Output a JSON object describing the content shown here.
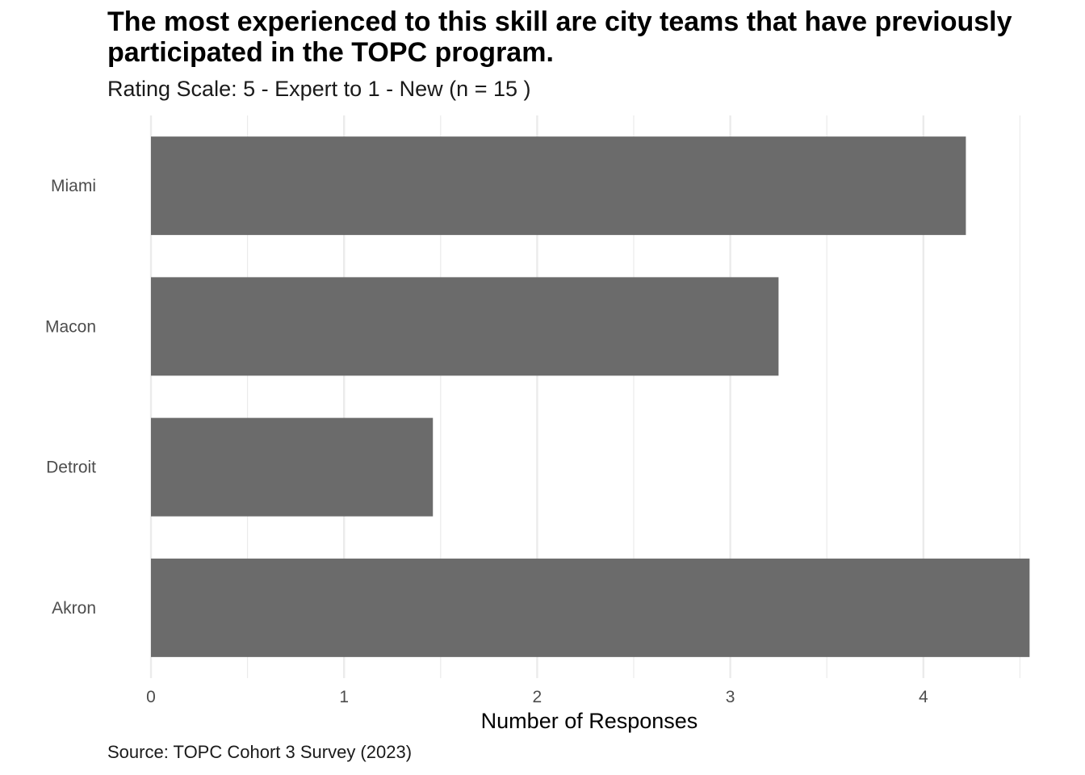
{
  "chart_data": {
    "type": "bar",
    "orientation": "horizontal",
    "title": "The most experienced to this skill are city teams that have previously participated in the TOPC program.",
    "subtitle": "Rating Scale: 5 - Expert to 1 - New (n = 15 )",
    "caption": "Source: TOPC Cohort 3 Survey (2023)",
    "xlabel": "Number of Responses",
    "ylabel": "",
    "categories": [
      "Miami",
      "Macon",
      "Detroit",
      "Akron"
    ],
    "values": [
      4.22,
      3.25,
      1.46,
      4.55
    ],
    "xlim": [
      0,
      4.55
    ],
    "xticks": [
      "0",
      "1",
      "2",
      "3",
      "4"
    ],
    "grid": true,
    "bar_color": "#6b6b6b",
    "grid_color": "#ebebeb"
  }
}
